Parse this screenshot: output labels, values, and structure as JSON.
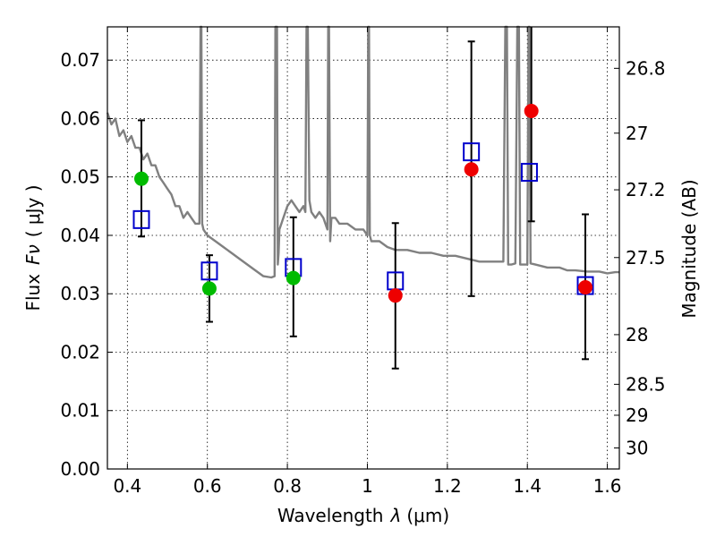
{
  "chart_data": {
    "type": "scatter",
    "xlabel_text": "Wavelength",
    "xlabel_symbol": "λ",
    "xlabel_unit": "(μm)",
    "ylabel_text": "Flux",
    "ylabel_symbol": "Fν",
    "ylabel_unit": "( μJy )",
    "right_ylabel": "Magnitude (AB)",
    "xlim": [
      0.35,
      1.63
    ],
    "ylim": [
      0.0,
      0.0757
    ],
    "grid": true,
    "x_ticks": [
      {
        "value": 0.4,
        "label": "0.4"
      },
      {
        "value": 0.6,
        "label": "0.6"
      },
      {
        "value": 0.8,
        "label": "0.8"
      },
      {
        "value": 1.0,
        "label": "1"
      },
      {
        "value": 1.2,
        "label": "1.2"
      },
      {
        "value": 1.4,
        "label": "1.4"
      },
      {
        "value": 1.6,
        "label": "1.6"
      }
    ],
    "y_ticks": [
      {
        "value": 0.0,
        "label": "0.00"
      },
      {
        "value": 0.01,
        "label": "0.01"
      },
      {
        "value": 0.02,
        "label": "0.02"
      },
      {
        "value": 0.03,
        "label": "0.03"
      },
      {
        "value": 0.04,
        "label": "0.04"
      },
      {
        "value": 0.05,
        "label": "0.05"
      },
      {
        "value": 0.06,
        "label": "0.06"
      },
      {
        "value": 0.07,
        "label": "0.07"
      }
    ],
    "right_ticks": [
      {
        "flux": 0.0686,
        "label": "26.8"
      },
      {
        "flux": 0.0575,
        "label": "27"
      },
      {
        "flux": 0.0478,
        "label": "27.2"
      },
      {
        "flux": 0.0362,
        "label": "27.5"
      },
      {
        "flux": 0.023,
        "label": "28"
      },
      {
        "flux": 0.0145,
        "label": "28.5"
      },
      {
        "flux": 0.0092,
        "label": "29"
      },
      {
        "flux": 0.0036,
        "label": "30"
      }
    ],
    "series": [
      {
        "name": "model-spectrum",
        "type": "line",
        "color": "#808080",
        "x": [
          0.35,
          0.36,
          0.37,
          0.38,
          0.39,
          0.4,
          0.41,
          0.42,
          0.43,
          0.44,
          0.45,
          0.46,
          0.47,
          0.48,
          0.49,
          0.5,
          0.51,
          0.52,
          0.53,
          0.54,
          0.55,
          0.56,
          0.57,
          0.58,
          0.583,
          0.585,
          0.587,
          0.59,
          0.6,
          0.62,
          0.64,
          0.66,
          0.68,
          0.7,
          0.72,
          0.74,
          0.76,
          0.768,
          0.77,
          0.772,
          0.774,
          0.776,
          0.778,
          0.78,
          0.79,
          0.8,
          0.81,
          0.82,
          0.83,
          0.84,
          0.845,
          0.848,
          0.851,
          0.855,
          0.86,
          0.87,
          0.88,
          0.89,
          0.9,
          0.902,
          0.904,
          0.907,
          0.91,
          0.92,
          0.93,
          0.94,
          0.95,
          0.97,
          0.99,
          1.0,
          1.002,
          1.004,
          1.006,
          1.01,
          1.03,
          1.05,
          1.07,
          1.1,
          1.13,
          1.16,
          1.19,
          1.22,
          1.25,
          1.28,
          1.3,
          1.32,
          1.34,
          1.345,
          1.347,
          1.349,
          1.352,
          1.36,
          1.37,
          1.375,
          1.377,
          1.379,
          1.382,
          1.39,
          1.4,
          1.403,
          1.405,
          1.408,
          1.42,
          1.45,
          1.48,
          1.5,
          1.52,
          1.55,
          1.58,
          1.6,
          1.62,
          1.63
        ],
        "y": [
          0.061,
          0.059,
          0.06,
          0.057,
          0.058,
          0.056,
          0.057,
          0.055,
          0.055,
          0.053,
          0.054,
          0.052,
          0.052,
          0.05,
          0.049,
          0.048,
          0.047,
          0.045,
          0.045,
          0.043,
          0.044,
          0.043,
          0.042,
          0.042,
          0.0757,
          0.0757,
          0.042,
          0.041,
          0.04,
          0.039,
          0.038,
          0.037,
          0.036,
          0.035,
          0.034,
          0.033,
          0.0328,
          0.033,
          0.0757,
          0.0757,
          0.0757,
          0.035,
          0.037,
          0.041,
          0.043,
          0.045,
          0.046,
          0.045,
          0.044,
          0.045,
          0.044,
          0.0757,
          0.0757,
          0.046,
          0.044,
          0.043,
          0.044,
          0.043,
          0.041,
          0.0757,
          0.0757,
          0.039,
          0.043,
          0.043,
          0.042,
          0.042,
          0.042,
          0.041,
          0.041,
          0.04,
          0.0757,
          0.0757,
          0.04,
          0.039,
          0.039,
          0.038,
          0.0375,
          0.0375,
          0.037,
          0.037,
          0.0365,
          0.0365,
          0.036,
          0.0355,
          0.0355,
          0.0355,
          0.0355,
          0.0757,
          0.0757,
          0.0757,
          0.035,
          0.035,
          0.0352,
          0.0757,
          0.0757,
          0.0757,
          0.035,
          0.035,
          0.035,
          0.0757,
          0.0757,
          0.0352,
          0.035,
          0.0345,
          0.0345,
          0.034,
          0.034,
          0.0338,
          0.0338,
          0.0335,
          0.0337,
          0.0337
        ]
      },
      {
        "name": "model-photometry",
        "type": "scatter",
        "marker": "square",
        "color": "#0000cc",
        "x": [
          0.435,
          0.605,
          0.815,
          1.07,
          1.26,
          1.405,
          1.545
        ],
        "y": [
          0.0427,
          0.0339,
          0.0345,
          0.0322,
          0.0543,
          0.0508,
          0.0314
        ]
      },
      {
        "name": "observed-green",
        "type": "scatter",
        "marker": "circle",
        "color": "#00bb00",
        "x": [
          0.435,
          0.605,
          0.815
        ],
        "y": [
          0.0497,
          0.0309,
          0.0327
        ],
        "err_low": [
          0.0398,
          0.0252,
          0.0227
        ],
        "err_high": [
          0.0597,
          0.0366,
          0.0431
        ]
      },
      {
        "name": "observed-red",
        "type": "scatter",
        "marker": "circle",
        "color": "#ee0000",
        "x": [
          1.07,
          1.26,
          1.41,
          1.545
        ],
        "y": [
          0.0297,
          0.0513,
          0.0613,
          0.0311
        ],
        "err_low": [
          0.0172,
          0.0296,
          0.0424,
          0.0188
        ],
        "err_high": [
          0.0421,
          0.0732,
          0.0757,
          0.0436
        ]
      }
    ]
  }
}
